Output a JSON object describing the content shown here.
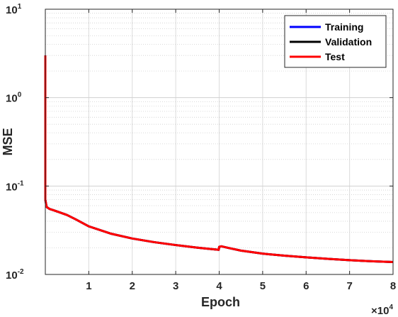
{
  "chart_data": {
    "type": "line",
    "title": "",
    "xlabel": "Epoch",
    "ylabel": "MSE",
    "x_multiplier": "×10^4",
    "xlim": [
      0,
      80000
    ],
    "ylim": [
      0.01,
      10
    ],
    "yscale": "log",
    "grid": true,
    "minor_grid": true,
    "legend_position": "top-right",
    "x_ticks": [
      10000,
      20000,
      30000,
      40000,
      50000,
      60000,
      70000,
      80000
    ],
    "x_tick_labels": [
      "1",
      "2",
      "3",
      "4",
      "5",
      "6",
      "7",
      "8"
    ],
    "y_ticks": [
      0.01,
      0.1,
      1,
      10
    ],
    "y_tick_labels": [
      {
        "base": "10",
        "exp": "-2"
      },
      {
        "base": "10",
        "exp": "-1"
      },
      {
        "base": "10",
        "exp": "0"
      },
      {
        "base": "10",
        "exp": "1"
      }
    ],
    "series": [
      {
        "name": "Training",
        "color": "#0000ff",
        "x": [
          0,
          0,
          300,
          1000,
          2000,
          3000,
          5000,
          7000,
          10000,
          15000,
          20000,
          25000,
          30000,
          35000,
          39900,
          40000,
          40500,
          42000,
          45000,
          50000,
          55000,
          60000,
          65000,
          70000,
          75000,
          80000
        ],
        "y": [
          3.0,
          0.07,
          0.058,
          0.055,
          0.053,
          0.051,
          0.047,
          0.042,
          0.035,
          0.029,
          0.0255,
          0.0232,
          0.0215,
          0.0201,
          0.019,
          0.0205,
          0.0208,
          0.02,
          0.0186,
          0.0172,
          0.0163,
          0.0156,
          0.015,
          0.0145,
          0.0141,
          0.0138
        ]
      },
      {
        "name": "Validation",
        "color": "#000000",
        "x": [
          0,
          0,
          300,
          1000,
          2000,
          3000,
          5000,
          7000,
          10000,
          15000,
          20000,
          25000,
          30000,
          35000,
          39900,
          40000,
          40500,
          42000,
          45000,
          50000,
          55000,
          60000,
          65000,
          70000,
          75000,
          80000
        ],
        "y": [
          3.0,
          0.07,
          0.058,
          0.055,
          0.053,
          0.051,
          0.047,
          0.042,
          0.035,
          0.029,
          0.0255,
          0.0232,
          0.0215,
          0.0201,
          0.019,
          0.0205,
          0.0208,
          0.02,
          0.0186,
          0.0172,
          0.0163,
          0.0156,
          0.015,
          0.0145,
          0.0141,
          0.0138
        ]
      },
      {
        "name": "Test",
        "color": "#ff0000",
        "x": [
          0,
          0,
          300,
          1000,
          2000,
          3000,
          5000,
          7000,
          10000,
          15000,
          20000,
          25000,
          30000,
          35000,
          39900,
          40000,
          40500,
          42000,
          45000,
          50000,
          55000,
          60000,
          65000,
          70000,
          75000,
          80000
        ],
        "y": [
          3.0,
          0.07,
          0.058,
          0.055,
          0.053,
          0.051,
          0.047,
          0.042,
          0.035,
          0.029,
          0.0255,
          0.0232,
          0.0215,
          0.0201,
          0.019,
          0.0205,
          0.0208,
          0.02,
          0.0186,
          0.0172,
          0.0163,
          0.0156,
          0.015,
          0.0145,
          0.0141,
          0.0138
        ]
      }
    ]
  }
}
